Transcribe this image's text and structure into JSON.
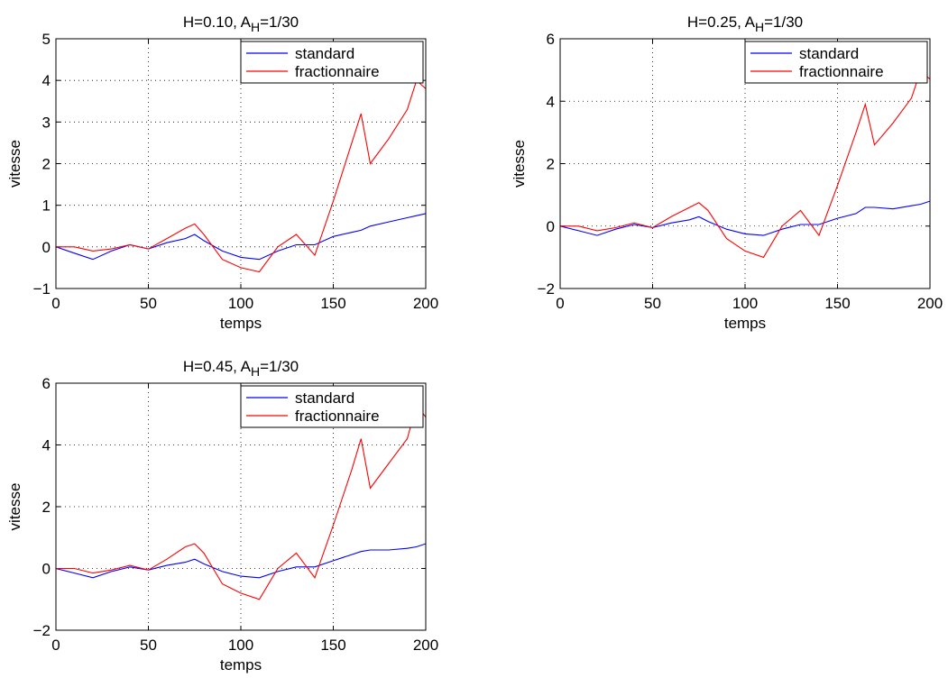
{
  "chart_data": [
    {
      "type": "line",
      "title_main": "H=0.10, A",
      "title_sub": "H",
      "title_tail": "=1/30",
      "xlabel": "temps",
      "ylabel": "vitesse",
      "xlim": [
        0,
        200
      ],
      "ylim": [
        -1,
        5
      ],
      "xticks": [
        "0",
        "50",
        "100",
        "150",
        "200"
      ],
      "yticks": [
        "−1",
        "0",
        "1",
        "2",
        "3",
        "4",
        "5"
      ],
      "ytick_values": [
        -1,
        0,
        1,
        2,
        3,
        4,
        5
      ],
      "grid": true,
      "legend_position": "top-right",
      "x": [
        0,
        10,
        20,
        30,
        40,
        50,
        60,
        70,
        75,
        80,
        90,
        100,
        110,
        120,
        130,
        140,
        150,
        160,
        165,
        170,
        180,
        190,
        195,
        200
      ],
      "series": [
        {
          "name": "standard",
          "color": "#0000ff",
          "values": [
            0.0,
            -0.15,
            -0.3,
            -0.1,
            0.05,
            -0.05,
            0.1,
            0.2,
            0.3,
            0.15,
            -0.1,
            -0.25,
            -0.3,
            -0.1,
            0.05,
            0.05,
            0.25,
            0.35,
            0.4,
            0.5,
            0.6,
            0.7,
            0.75,
            0.8
          ]
        },
        {
          "name": "fractionnaire",
          "color": "#ff0000",
          "values": [
            0.0,
            0.0,
            -0.1,
            -0.05,
            0.05,
            -0.05,
            0.2,
            0.45,
            0.55,
            0.3,
            -0.3,
            -0.5,
            -0.6,
            0.0,
            0.3,
            -0.2,
            1.1,
            2.5,
            3.2,
            2.0,
            2.6,
            3.3,
            4.0,
            3.8
          ]
        }
      ]
    },
    {
      "type": "line",
      "title_main": "H=0.25, A",
      "title_sub": "H",
      "title_tail": "=1/30",
      "xlabel": "temps",
      "ylabel": "vitesse",
      "xlim": [
        0,
        200
      ],
      "ylim": [
        -2,
        6
      ],
      "xticks": [
        "0",
        "50",
        "100",
        "150",
        "200"
      ],
      "yticks": [
        "−2",
        "0",
        "2",
        "4",
        "6"
      ],
      "ytick_values": [
        -2,
        0,
        2,
        4,
        6
      ],
      "grid": true,
      "legend_position": "top-right",
      "x": [
        0,
        10,
        20,
        30,
        40,
        50,
        60,
        70,
        75,
        80,
        90,
        100,
        110,
        120,
        130,
        140,
        150,
        160,
        165,
        170,
        180,
        190,
        195,
        200
      ],
      "series": [
        {
          "name": "standard",
          "color": "#0000ff",
          "values": [
            0.0,
            -0.15,
            -0.3,
            -0.1,
            0.05,
            -0.05,
            0.1,
            0.2,
            0.3,
            0.15,
            -0.1,
            -0.25,
            -0.3,
            -0.1,
            0.05,
            0.05,
            0.25,
            0.4,
            0.6,
            0.6,
            0.55,
            0.65,
            0.7,
            0.8
          ]
        },
        {
          "name": "fractionnaire",
          "color": "#ff0000",
          "values": [
            0.0,
            0.0,
            -0.15,
            -0.05,
            0.1,
            -0.05,
            0.3,
            0.6,
            0.75,
            0.5,
            -0.4,
            -0.8,
            -1.0,
            0.0,
            0.5,
            -0.3,
            1.3,
            3.0,
            3.9,
            2.6,
            3.3,
            4.1,
            5.0,
            4.7
          ]
        }
      ]
    },
    {
      "type": "line",
      "title_main": "H=0.45, A",
      "title_sub": "H",
      "title_tail": "=1/30",
      "xlabel": "temps",
      "ylabel": "vitesse",
      "xlim": [
        0,
        200
      ],
      "ylim": [
        -2,
        6
      ],
      "xticks": [
        "0",
        "50",
        "100",
        "150",
        "200"
      ],
      "yticks": [
        "−2",
        "0",
        "2",
        "4",
        "6"
      ],
      "ytick_values": [
        -2,
        0,
        2,
        4,
        6
      ],
      "grid": true,
      "legend_position": "top-right",
      "x": [
        0,
        10,
        20,
        30,
        40,
        50,
        60,
        70,
        75,
        80,
        90,
        100,
        110,
        120,
        130,
        140,
        150,
        160,
        165,
        170,
        180,
        190,
        195,
        200
      ],
      "series": [
        {
          "name": "standard",
          "color": "#0000ff",
          "values": [
            0.0,
            -0.15,
            -0.3,
            -0.1,
            0.05,
            -0.05,
            0.1,
            0.2,
            0.3,
            0.15,
            -0.1,
            -0.25,
            -0.3,
            -0.1,
            0.05,
            0.05,
            0.25,
            0.45,
            0.55,
            0.6,
            0.6,
            0.65,
            0.7,
            0.8
          ]
        },
        {
          "name": "fractionnaire",
          "color": "#ff0000",
          "values": [
            0.0,
            0.0,
            -0.15,
            -0.05,
            0.1,
            -0.05,
            0.3,
            0.7,
            0.8,
            0.5,
            -0.5,
            -0.8,
            -1.0,
            0.0,
            0.5,
            -0.3,
            1.4,
            3.2,
            4.2,
            2.6,
            3.4,
            4.2,
            5.3,
            4.9
          ]
        }
      ]
    }
  ]
}
